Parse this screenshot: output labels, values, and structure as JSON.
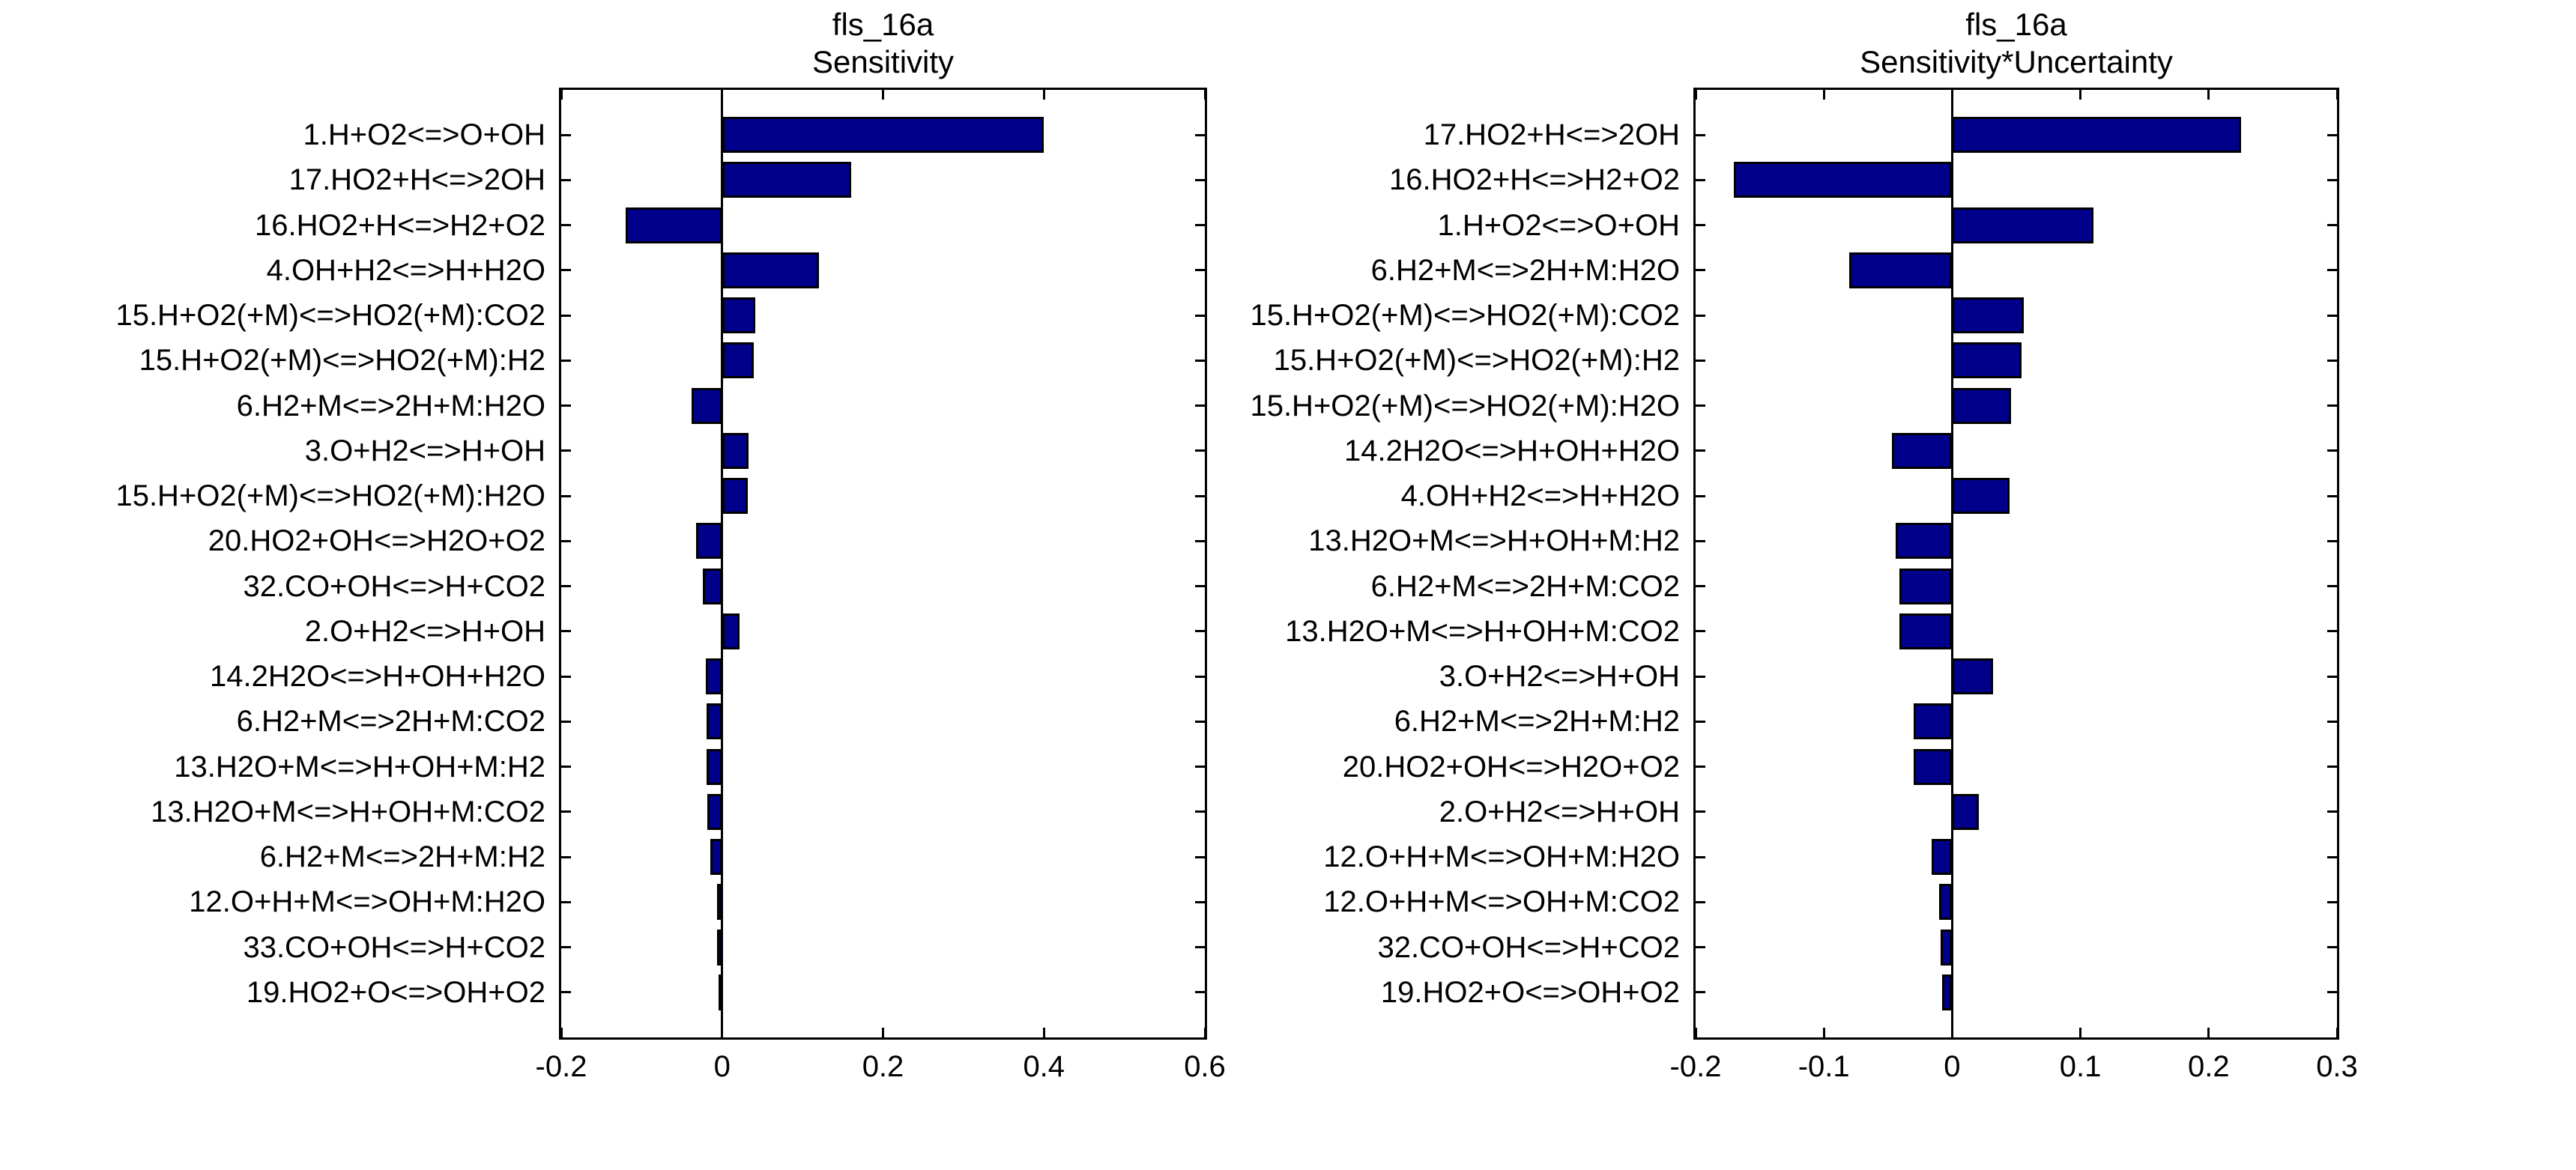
{
  "figure": {
    "background": "#ffffff",
    "frame_color": "#000000",
    "bar_fill": "#00008B",
    "bar_edge": "#000000"
  },
  "chart_data": [
    {
      "type": "bar",
      "orientation": "horizontal",
      "title": "fls_16a",
      "subtitle": "Sensitivity",
      "xlabel": "",
      "ylabel": "",
      "grid": false,
      "legend_position": "none",
      "xlim": [
        -0.2,
        0.6
      ],
      "xticks": [
        -0.2,
        0,
        0.2,
        0.4,
        0.6
      ],
      "xtick_labels": [
        "-0.2",
        "0",
        "0.2",
        "0.4",
        "0.6"
      ],
      "categories": [
        "1.H+O2<=>O+OH",
        "17.HO2+H<=>2OH",
        "16.HO2+H<=>H2+O2",
        "4.OH+H2<=>H+H2O",
        "15.H+O2(+M)<=>HO2(+M):CO2",
        "15.H+O2(+M)<=>HO2(+M):H2",
        "6.H2+M<=>2H+M:H2O",
        "3.O+H2<=>H+OH",
        "15.H+O2(+M)<=>HO2(+M):H2O",
        "20.HO2+OH<=>H2O+O2",
        "32.CO+OH<=>H+CO2",
        "2.O+H2<=>H+OH",
        "14.2H2O<=>H+OH+H2O",
        "6.H2+M<=>2H+M:CO2",
        "13.H2O+M<=>H+OH+M:H2",
        "13.H2O+M<=>H+OH+M:CO2",
        "6.H2+M<=>2H+M:H2",
        "12.O+H+M<=>OH+M:H2O",
        "33.CO+OH<=>H+CO2",
        "19.HO2+O<=>OH+O2"
      ],
      "values": [
        0.4,
        0.16,
        -0.12,
        0.12,
        0.041,
        0.039,
        -0.038,
        0.033,
        0.032,
        -0.032,
        -0.024,
        0.022,
        -0.02,
        -0.019,
        -0.019,
        -0.018,
        -0.015,
        -0.006,
        -0.006,
        -0.004
      ]
    },
    {
      "type": "bar",
      "orientation": "horizontal",
      "title": "fls_16a",
      "subtitle": "Sensitivity*Uncertainty",
      "xlabel": "",
      "ylabel": "",
      "grid": false,
      "legend_position": "none",
      "xlim": [
        -0.2,
        0.3
      ],
      "xticks": [
        -0.2,
        -0.1,
        0,
        0.1,
        0.2,
        0.3
      ],
      "xtick_labels": [
        "-0.2",
        "-0.1",
        "0",
        "0.1",
        "0.2",
        "0.3"
      ],
      "categories": [
        "17.HO2+H<=>2OH",
        "16.HO2+H<=>H2+O2",
        "1.H+O2<=>O+OH",
        "6.H2+M<=>2H+M:H2O",
        "15.H+O2(+M)<=>HO2(+M):CO2",
        "15.H+O2(+M)<=>HO2(+M):H2",
        "15.H+O2(+M)<=>HO2(+M):H2O",
        "14.2H2O<=>H+OH+H2O",
        "4.OH+H2<=>H+H2O",
        "13.H2O+M<=>H+OH+M:H2",
        "6.H2+M<=>2H+M:CO2",
        "13.H2O+M<=>H+OH+M:CO2",
        "3.O+H2<=>H+OH",
        "6.H2+M<=>2H+M:H2",
        "20.HO2+OH<=>H2O+O2",
        "2.O+H2<=>H+OH",
        "12.O+H+M<=>OH+M:H2O",
        "12.O+H+M<=>OH+M:CO2",
        "32.CO+OH<=>H+CO2",
        "19.HO2+O<=>OH+O2"
      ],
      "values": [
        0.225,
        -0.17,
        0.11,
        -0.08,
        0.056,
        0.054,
        0.046,
        -0.047,
        0.045,
        -0.044,
        -0.041,
        -0.041,
        0.032,
        -0.03,
        -0.03,
        0.021,
        -0.016,
        -0.01,
        -0.009,
        -0.008
      ]
    }
  ]
}
